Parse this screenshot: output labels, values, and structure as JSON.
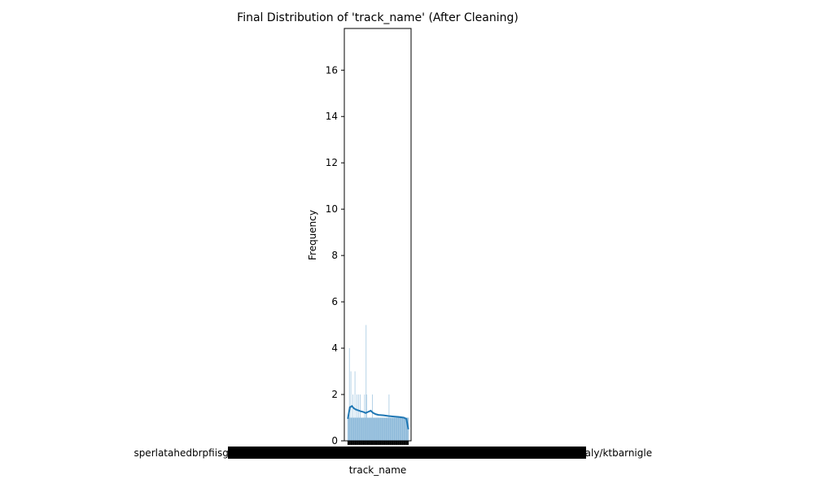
{
  "chart_data": {
    "type": "histogram",
    "title": "Final Distribution of 'track_name' (After Cleaning)",
    "xlabel": "track_name",
    "ylabel": "Frequency",
    "ylim": [
      0,
      17.8
    ],
    "yticks": [
      0,
      2,
      4,
      6,
      8,
      10,
      12,
      14,
      16
    ],
    "x_count": 120,
    "bar_values": [
      1,
      1,
      1,
      4,
      1,
      1,
      3,
      1,
      1,
      1,
      2,
      1,
      1,
      1,
      3,
      1,
      1,
      1,
      2,
      1,
      1,
      2,
      1,
      1,
      2,
      1,
      1,
      1,
      1,
      1,
      1,
      1,
      1,
      2,
      1,
      1,
      5,
      2,
      1,
      1,
      1,
      1,
      1,
      1,
      1,
      1,
      1,
      1,
      2,
      1,
      1,
      1,
      1,
      1,
      1,
      1,
      1,
      1,
      1,
      1,
      1,
      1,
      1,
      1,
      1,
      1,
      1,
      1,
      1,
      1,
      1,
      1,
      1,
      1,
      1,
      1,
      1,
      1,
      1,
      1,
      1,
      2,
      1,
      1,
      1,
      1,
      1,
      1,
      1,
      1,
      1,
      1,
      1,
      1,
      1,
      1,
      1,
      1,
      1,
      1,
      1,
      1,
      1,
      1,
      1,
      1,
      1,
      1,
      1,
      1,
      1,
      1,
      1,
      1,
      1,
      1,
      1,
      1,
      1,
      1
    ],
    "kde": {
      "x": [
        0,
        4,
        8,
        12,
        16,
        20,
        25,
        30,
        35,
        40,
        45,
        50,
        55,
        60,
        70,
        80,
        90,
        100,
        110,
        115,
        119
      ],
      "y": [
        0.95,
        1.45,
        1.5,
        1.4,
        1.35,
        1.32,
        1.28,
        1.25,
        1.2,
        1.25,
        1.3,
        1.2,
        1.15,
        1.12,
        1.1,
        1.07,
        1.05,
        1.03,
        1.0,
        0.95,
        0.5
      ]
    },
    "grid": false,
    "legend": "none",
    "colors": {
      "bar": "#7eb0d5",
      "kde": "#1f77b4",
      "axis": "#000000"
    },
    "x_tick_overlap_left": "sperlatahedbrpfiisgalfiy ta;1'1 /'11F7/Z2(//1",
    "x_tick_overlap_right": "//)'/,1)/5 7/')'/;'7''1 N/'!'l\"hl1lbaldeatialy/ktbarnigle"
  }
}
